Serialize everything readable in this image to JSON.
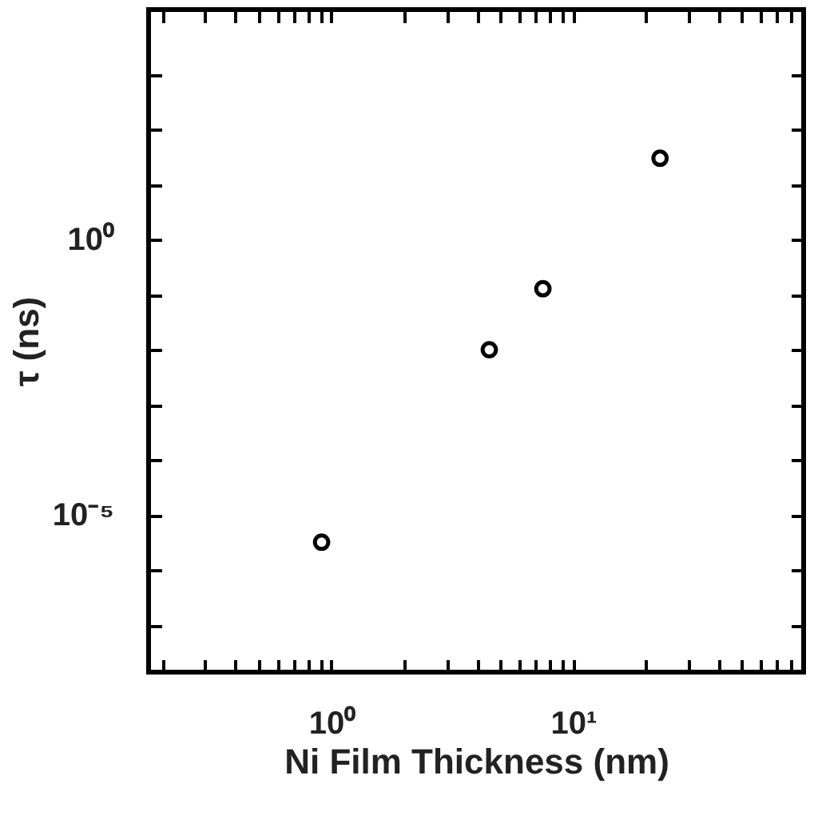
{
  "chart_data": {
    "type": "scatter",
    "xlabel": "Ni Film Thickness (nm)",
    "ylabel": "τ (ns)",
    "x": [
      0.91,
      4.5,
      7.5,
      22.9
    ],
    "series": [
      {
        "color": "#000000",
        "values": [
          3.2e-06,
          0.01,
          0.128,
          30
        ]
      }
    ],
    "log": "xy",
    "marker": "circle",
    "grid": false,
    "xlim": [
      0.175,
      90
    ],
    "ylim": [
      1.4e-08,
      15000.0
    ],
    "xticks": [
      {
        "value": 0.2,
        "label": null
      },
      {
        "value": 0.3,
        "label": null
      },
      {
        "value": 0.4,
        "label": null
      },
      {
        "value": 0.5,
        "label": null
      },
      {
        "value": 0.6,
        "label": null
      },
      {
        "value": 0.7,
        "label": null
      },
      {
        "value": 0.8,
        "label": null
      },
      {
        "value": 0.9,
        "label": null
      },
      {
        "value": 1,
        "label": "10⁰"
      },
      {
        "value": 2,
        "label": null
      },
      {
        "value": 3,
        "label": null
      },
      {
        "value": 4,
        "label": null
      },
      {
        "value": 5,
        "label": null
      },
      {
        "value": 6,
        "label": null
      },
      {
        "value": 7,
        "label": null
      },
      {
        "value": 8,
        "label": null
      },
      {
        "value": 9,
        "label": null
      },
      {
        "value": 10,
        "label": "10¹"
      },
      {
        "value": 20,
        "label": null
      },
      {
        "value": 30,
        "label": null
      },
      {
        "value": 40,
        "label": null
      },
      {
        "value": 50,
        "label": null
      },
      {
        "value": 60,
        "label": null
      },
      {
        "value": 70,
        "label": null
      },
      {
        "value": 80,
        "label": null
      }
    ],
    "yticks": [
      {
        "value": 1e-07,
        "label": null
      },
      {
        "value": 1e-06,
        "label": null
      },
      {
        "value": 1e-05,
        "label": "10⁻⁵"
      },
      {
        "value": 0.0001,
        "label": null
      },
      {
        "value": 0.001,
        "label": null
      },
      {
        "value": 0.01,
        "label": null
      },
      {
        "value": 0.1,
        "label": null
      },
      {
        "value": 1,
        "label": "10⁰"
      },
      {
        "value": 10,
        "label": null
      },
      {
        "value": 100,
        "label": null
      },
      {
        "value": 1000,
        "label": null
      }
    ]
  }
}
